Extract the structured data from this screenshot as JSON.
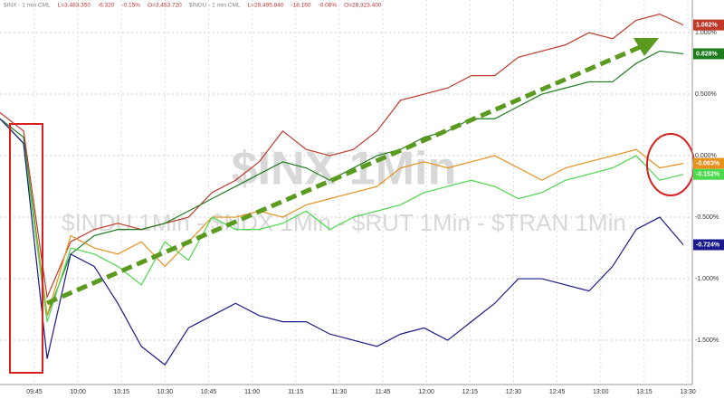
{
  "chart_data": {
    "type": "line",
    "header": [
      "$INX - 1 min CML",
      "L=3,483.350",
      "-6.320",
      "-0.15%",
      "O=3,453.720",
      "$INDU - 1 min CML",
      "L=28,495.840",
      "-18.160",
      "-0.06%",
      "O=28,323.400"
    ],
    "watermark": "$INX 1Min",
    "subtitle": "$INDU 1Min - $NDX 1Min - $RUT 1Min - $TRAN 1Min",
    "ylim": [
      -1.86,
      1.265
    ],
    "yticks": [
      {
        "value": 1,
        "label": "1.000%"
      },
      {
        "value": 0.5,
        "label": "0.500%"
      },
      {
        "value": 0,
        "label": "0.000%"
      },
      {
        "value": -0.5,
        "label": "-0.500%"
      },
      {
        "value": -1,
        "label": "-1.000%"
      },
      {
        "value": -1.5,
        "label": "-1.500%"
      }
    ],
    "xticks": [
      "09:45",
      "10:00",
      "10:15",
      "10:30",
      "10:45",
      "11:00",
      "11:15",
      "11:30",
      "11:45",
      "12:00",
      "12:15",
      "12:30",
      "12:45",
      "13:00",
      "13:15",
      "13:30"
    ],
    "grid": true,
    "series": [
      {
        "color": "#c0392b",
        "end_label": "1.062%",
        "values": [
          0.35,
          0.2,
          -1.15,
          -0.7,
          -0.6,
          -0.55,
          -0.6,
          -0.55,
          -0.5,
          -0.3,
          -0.2,
          -0.05,
          0.2,
          0.05,
          0,
          0.05,
          0.2,
          0.45,
          0.5,
          0.55,
          0.65,
          0.65,
          0.8,
          0.85,
          0.9,
          1.0,
          0.95,
          1.1,
          1.15,
          1.062
        ]
      },
      {
        "color": "#1e7b1e",
        "end_label": "0.828%",
        "values": [
          0.3,
          0.15,
          -1.3,
          -0.8,
          -0.65,
          -0.6,
          -0.6,
          -0.55,
          -0.45,
          -0.35,
          -0.25,
          -0.15,
          -0.05,
          -0.1,
          -0.2,
          -0.1,
          0,
          0.05,
          0.15,
          0.2,
          0.3,
          0.3,
          0.4,
          0.5,
          0.55,
          0.6,
          0.6,
          0.75,
          0.85,
          0.828
        ]
      },
      {
        "color": "#e8901c",
        "end_label": "-0.063%",
        "values": [
          0.3,
          0.1,
          -1.3,
          -0.65,
          -0.75,
          -0.8,
          -0.7,
          -0.9,
          -0.7,
          -0.5,
          -0.5,
          -0.45,
          -0.5,
          -0.4,
          -0.35,
          -0.3,
          -0.25,
          -0.1,
          -0.05,
          -0.1,
          -0.05,
          0,
          -0.1,
          -0.2,
          -0.1,
          -0.05,
          0,
          0.05,
          -0.1,
          -0.063
        ]
      },
      {
        "color": "#4cd94c",
        "end_label": "-0.152%",
        "values": [
          0.3,
          0.1,
          -1.35,
          -0.75,
          -0.8,
          -0.9,
          -1.05,
          -0.7,
          -0.85,
          -0.5,
          -0.6,
          -0.6,
          -0.55,
          -0.45,
          -0.6,
          -0.5,
          -0.45,
          -0.4,
          -0.3,
          -0.25,
          -0.2,
          -0.25,
          -0.35,
          -0.3,
          -0.2,
          -0.15,
          -0.1,
          0,
          -0.2,
          -0.152
        ]
      },
      {
        "color": "#1a1a8c",
        "end_label": "-0.724%",
        "values": [
          0.3,
          0.1,
          -1.65,
          -0.8,
          -0.9,
          -1.2,
          -1.55,
          -1.7,
          -1.4,
          -1.3,
          -1.2,
          -1.3,
          -1.35,
          -1.35,
          -1.45,
          -1.5,
          -1.55,
          -1.45,
          -1.4,
          -1.5,
          -1.35,
          -1.2,
          -1.0,
          -1.0,
          -1.05,
          -1.1,
          -0.9,
          -0.6,
          -0.5,
          -0.724
        ]
      }
    ]
  }
}
